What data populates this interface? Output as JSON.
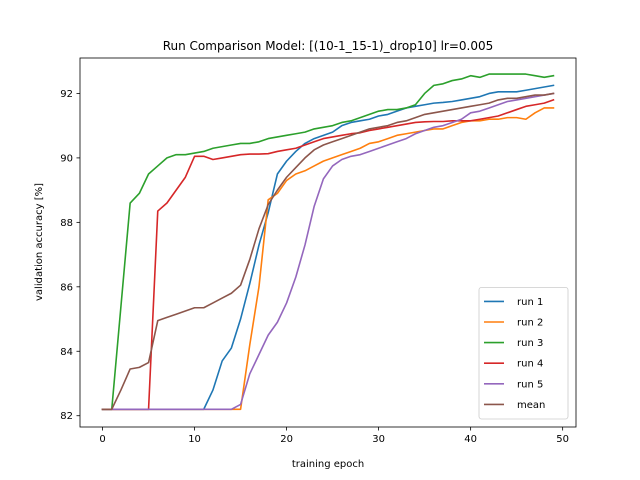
{
  "chart_data": {
    "type": "line",
    "title": "Run Comparison  Model: [(10-1_15-1)_drop10]  lr=0.005",
    "xlabel": "training epoch",
    "ylabel": "validation accuracy [%]",
    "xlim": [
      -2.45,
      51.45
    ],
    "ylim": [
      81.65,
      93.1
    ],
    "xticks": [
      0,
      10,
      20,
      30,
      40,
      50
    ],
    "yticks": [
      82,
      84,
      86,
      88,
      90,
      92
    ],
    "grid": false,
    "legend_position": "bottom-right",
    "x": [
      0,
      1,
      2,
      3,
      4,
      5,
      6,
      7,
      8,
      9,
      10,
      11,
      12,
      13,
      14,
      15,
      16,
      17,
      18,
      19,
      20,
      21,
      22,
      23,
      24,
      25,
      26,
      27,
      28,
      29,
      30,
      31,
      32,
      33,
      34,
      35,
      36,
      37,
      38,
      39,
      40,
      41,
      42,
      43,
      44,
      45,
      46,
      47,
      48,
      49
    ],
    "series": [
      {
        "name": "run 1",
        "color": "#1f77b4",
        "values": [
          82.2,
          82.2,
          82.2,
          82.2,
          82.2,
          82.2,
          82.2,
          82.2,
          82.2,
          82.2,
          82.2,
          82.2,
          82.8,
          83.7,
          84.1,
          85.0,
          86.1,
          87.3,
          88.3,
          89.5,
          89.9,
          90.2,
          90.45,
          90.6,
          90.7,
          90.8,
          91.0,
          91.1,
          91.15,
          91.2,
          91.3,
          91.35,
          91.45,
          91.55,
          91.6,
          91.65,
          91.7,
          91.72,
          91.75,
          91.8,
          91.85,
          91.9,
          92.0,
          92.05,
          92.05,
          92.05,
          92.1,
          92.15,
          92.2,
          92.25
        ]
      },
      {
        "name": "run 2",
        "color": "#ff7f0e",
        "values": [
          82.2,
          82.2,
          82.2,
          82.2,
          82.2,
          82.2,
          82.2,
          82.2,
          82.2,
          82.2,
          82.2,
          82.2,
          82.2,
          82.2,
          82.2,
          82.2,
          84.2,
          86.0,
          88.7,
          88.9,
          89.3,
          89.5,
          89.6,
          89.75,
          89.9,
          90.0,
          90.1,
          90.2,
          90.3,
          90.45,
          90.5,
          90.6,
          90.7,
          90.75,
          90.8,
          90.85,
          90.9,
          90.9,
          91.0,
          91.1,
          91.15,
          91.15,
          91.2,
          91.2,
          91.25,
          91.25,
          91.2,
          91.4,
          91.55,
          91.55
        ]
      },
      {
        "name": "run 3",
        "color": "#2ca02c",
        "values": [
          82.2,
          82.2,
          85.4,
          88.6,
          88.9,
          89.5,
          89.75,
          90.0,
          90.1,
          90.1,
          90.15,
          90.2,
          90.3,
          90.35,
          90.4,
          90.45,
          90.45,
          90.5,
          90.6,
          90.65,
          90.7,
          90.75,
          90.8,
          90.9,
          90.95,
          91.0,
          91.1,
          91.15,
          91.25,
          91.35,
          91.45,
          91.5,
          91.5,
          91.55,
          91.65,
          92.0,
          92.25,
          92.3,
          92.4,
          92.45,
          92.55,
          92.5,
          92.6,
          92.6,
          92.6,
          92.6,
          92.6,
          92.55,
          92.5,
          92.55
        ]
      },
      {
        "name": "run 4",
        "color": "#d62728",
        "values": [
          82.2,
          82.2,
          82.2,
          82.2,
          82.2,
          82.2,
          88.35,
          88.6,
          89.0,
          89.4,
          90.05,
          90.05,
          89.95,
          90.0,
          90.05,
          90.1,
          90.12,
          90.12,
          90.13,
          90.2,
          90.25,
          90.3,
          90.4,
          90.5,
          90.6,
          90.65,
          90.7,
          90.75,
          90.78,
          90.85,
          90.9,
          90.95,
          91.0,
          91.05,
          91.1,
          91.12,
          91.13,
          91.13,
          91.15,
          91.15,
          91.15,
          91.2,
          91.25,
          91.3,
          91.4,
          91.5,
          91.6,
          91.65,
          91.7,
          91.8
        ]
      },
      {
        "name": "run 5",
        "color": "#9467bd",
        "values": [
          82.2,
          82.2,
          82.2,
          82.2,
          82.2,
          82.2,
          82.2,
          82.2,
          82.2,
          82.2,
          82.2,
          82.2,
          82.2,
          82.2,
          82.2,
          82.35,
          83.3,
          83.9,
          84.5,
          84.9,
          85.5,
          86.3,
          87.3,
          88.5,
          89.35,
          89.75,
          89.95,
          90.05,
          90.1,
          90.2,
          90.3,
          90.4,
          90.5,
          90.6,
          90.75,
          90.85,
          90.95,
          91.0,
          91.1,
          91.2,
          91.4,
          91.45,
          91.55,
          91.65,
          91.75,
          91.8,
          91.85,
          91.9,
          91.95,
          92.0
        ]
      },
      {
        "name": "mean",
        "color": "#8c564b",
        "values": [
          82.2,
          82.2,
          82.8,
          83.45,
          83.5,
          83.65,
          84.95,
          85.05,
          85.15,
          85.25,
          85.35,
          85.35,
          85.5,
          85.65,
          85.8,
          86.05,
          86.85,
          87.8,
          88.55,
          89.0,
          89.4,
          89.7,
          90.0,
          90.25,
          90.4,
          90.5,
          90.6,
          90.7,
          90.8,
          90.9,
          90.95,
          91.0,
          91.1,
          91.15,
          91.25,
          91.35,
          91.4,
          91.45,
          91.5,
          91.55,
          91.6,
          91.65,
          91.7,
          91.8,
          91.85,
          91.85,
          91.9,
          91.95,
          91.95,
          92.0
        ]
      }
    ]
  }
}
